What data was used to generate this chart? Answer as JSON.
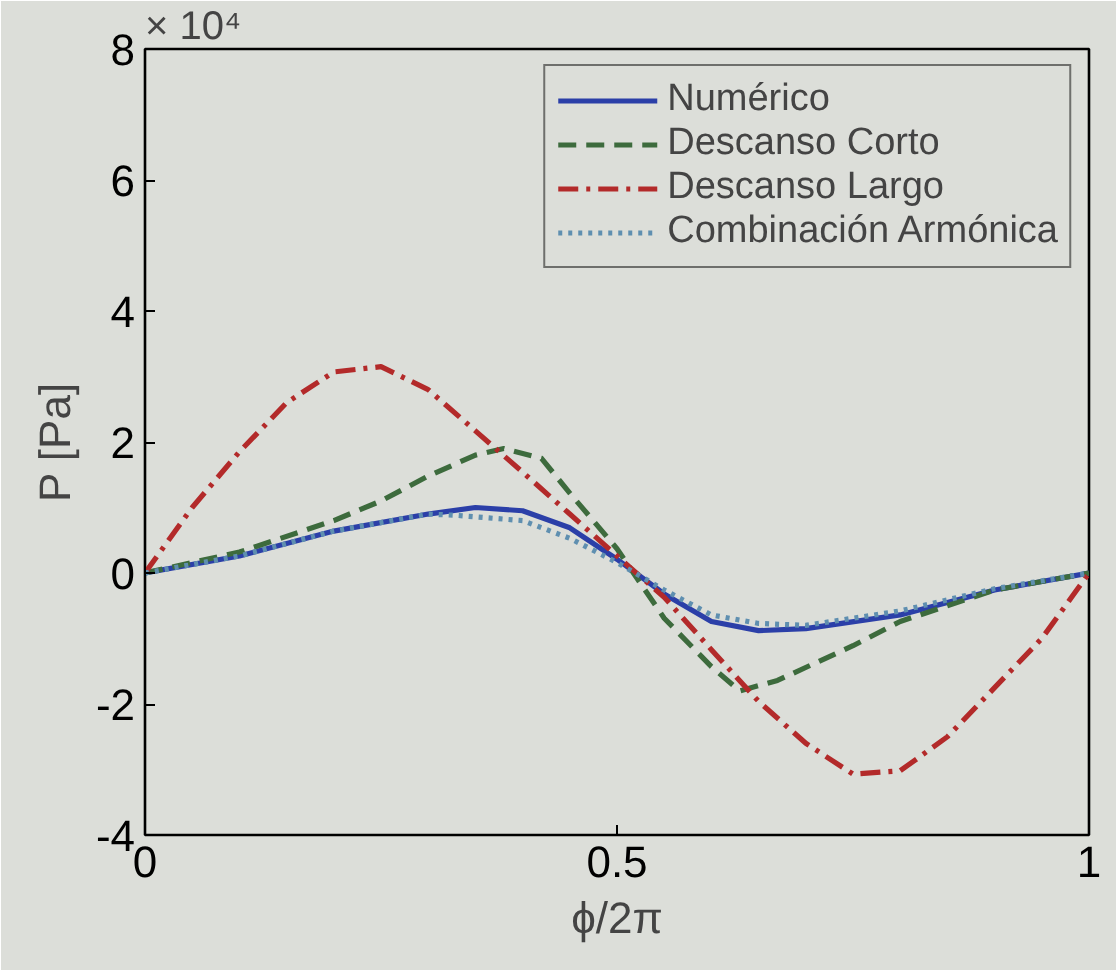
{
  "chart_data": {
    "type": "line",
    "xlabel": "ϕ/2π",
    "ylabel": "P [Pa]",
    "annotations": [
      "× 10⁴"
    ],
    "xlim": [
      0,
      1
    ],
    "xticks": [
      0,
      0.5,
      1
    ],
    "ylim": [
      -4,
      8
    ],
    "yticks": [
      -4,
      -2,
      0,
      2,
      4,
      6,
      8
    ],
    "grid": false,
    "legend": "top right",
    "series": [
      {
        "name": "Numérico",
        "color": "#2b3fa8",
        "line_style": "solid",
        "x": [
          0,
          0.1,
          0.2,
          0.3,
          0.35,
          0.4,
          0.45,
          0.5,
          0.55,
          0.6,
          0.65,
          0.7,
          0.8,
          0.9,
          1.0
        ],
        "values": [
          0,
          0.26,
          0.64,
          0.9,
          1.0,
          0.95,
          0.69,
          0.21,
          -0.32,
          -0.74,
          -0.88,
          -0.85,
          -0.64,
          -0.26,
          0
        ]
      },
      {
        "name": "Descanso Corto",
        "color": "#3d6b3d",
        "line_style": "dashed",
        "x": [
          0,
          0.1,
          0.2,
          0.25,
          0.3,
          0.35,
          0.38,
          0.42,
          0.45,
          0.5,
          0.55,
          0.6,
          0.63,
          0.67,
          0.75,
          0.8,
          0.9,
          1.0
        ],
        "values": [
          0,
          0.32,
          0.8,
          1.1,
          1.48,
          1.8,
          1.9,
          1.75,
          1.22,
          0.37,
          -0.69,
          -1.43,
          -1.8,
          -1.64,
          -1.11,
          -0.74,
          -0.26,
          0
        ]
      },
      {
        "name": "Descanso Largo",
        "color": "#b32a2a",
        "line_style": "dashdot",
        "x": [
          0,
          0.05,
          0.1,
          0.15,
          0.2,
          0.25,
          0.3,
          0.35,
          0.4,
          0.45,
          0.5,
          0.55,
          0.6,
          0.65,
          0.7,
          0.75,
          0.8,
          0.85,
          0.9,
          0.95,
          1.0
        ],
        "values": [
          0,
          1.0,
          1.85,
          2.6,
          3.07,
          3.15,
          2.8,
          2.17,
          1.54,
          0.9,
          0.26,
          -0.37,
          -1.17,
          -1.96,
          -2.6,
          -3.07,
          -3.02,
          -2.5,
          -1.75,
          -1.0,
          0
        ]
      },
      {
        "name": "Combinación Armónica",
        "color": "#5f8fb0",
        "line_style": "dotted",
        "x": [
          0,
          0.1,
          0.2,
          0.3,
          0.33,
          0.4,
          0.45,
          0.5,
          0.55,
          0.6,
          0.65,
          0.7,
          0.8,
          0.9,
          1.0
        ],
        "values": [
          0,
          0.26,
          0.64,
          0.9,
          0.88,
          0.8,
          0.53,
          0.16,
          -0.26,
          -0.64,
          -0.77,
          -0.8,
          -0.58,
          -0.24,
          0
        ]
      }
    ]
  }
}
